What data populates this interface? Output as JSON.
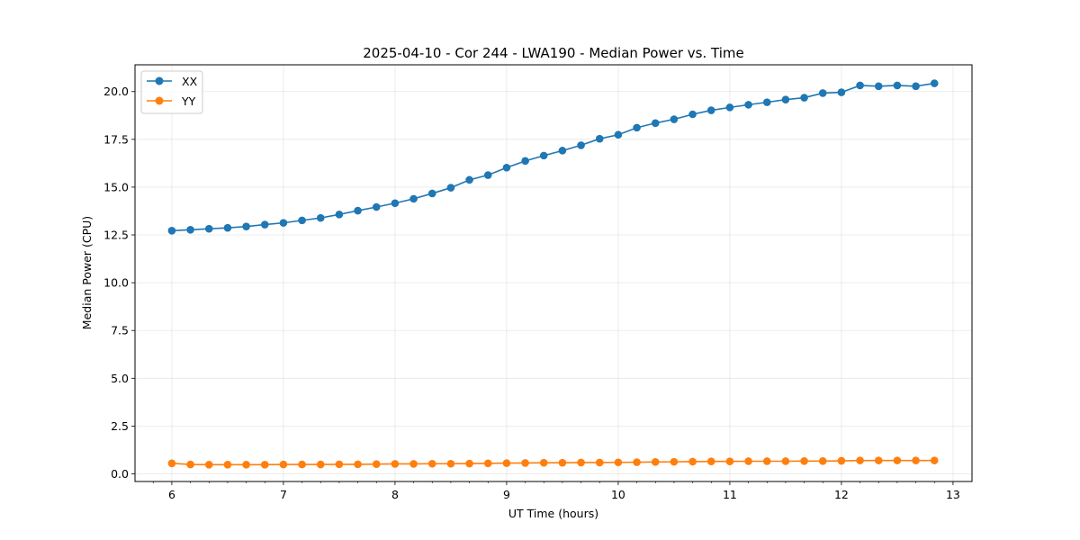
{
  "chart_data": {
    "type": "line",
    "title": "2025-04-10 - Cor 244 - LWA190 - Median Power vs. Time",
    "xlabel": "UT Time (hours)",
    "ylabel": "Median Power (CPU)",
    "xlim": [
      5.67,
      13.17
    ],
    "ylim": [
      -0.4,
      21.4
    ],
    "xticks": [
      6,
      7,
      8,
      9,
      10,
      11,
      12,
      13
    ],
    "xtick_labels": [
      "6",
      "7",
      "8",
      "9",
      "10",
      "11",
      "12",
      "13"
    ],
    "yticks": [
      0,
      2.5,
      5,
      7.5,
      10,
      12.5,
      15,
      17.5,
      20
    ],
    "ytick_labels": [
      "0.0",
      "2.5",
      "5.0",
      "7.5",
      "10.0",
      "12.5",
      "15.0",
      "17.5",
      "20.0"
    ],
    "grid": true,
    "legend_position": "top-left",
    "x": [
      6.0,
      6.1667,
      6.3333,
      6.5,
      6.6667,
      6.8333,
      7.0,
      7.1667,
      7.3333,
      7.5,
      7.6667,
      7.8333,
      8.0,
      8.1667,
      8.3333,
      8.5,
      8.6667,
      8.8333,
      9.0,
      9.1667,
      9.3333,
      9.5,
      9.6667,
      9.8333,
      10.0,
      10.1667,
      10.3333,
      10.5,
      10.6667,
      10.8333,
      11.0,
      11.1667,
      11.3333,
      11.5,
      11.6667,
      11.8333,
      12.0,
      12.1667,
      12.3333,
      12.5,
      12.6667,
      12.8333
    ],
    "series": [
      {
        "name": "XX",
        "color": "#1f77b4",
        "values": [
          12.72,
          12.77,
          12.82,
          12.87,
          12.94,
          13.04,
          13.13,
          13.26,
          13.39,
          13.57,
          13.77,
          13.96,
          14.16,
          14.39,
          14.67,
          14.97,
          15.38,
          15.63,
          16.02,
          16.37,
          16.65,
          16.91,
          17.19,
          17.53,
          17.74,
          18.11,
          18.35,
          18.55,
          18.81,
          19.02,
          19.17,
          19.31,
          19.44,
          19.58,
          19.68,
          19.92,
          19.96,
          20.32,
          20.28,
          20.32,
          20.28,
          20.43
        ]
      },
      {
        "name": "YY",
        "color": "#ff7f0e",
        "values": [
          0.55,
          0.49,
          0.48,
          0.48,
          0.48,
          0.48,
          0.49,
          0.49,
          0.49,
          0.5,
          0.5,
          0.51,
          0.52,
          0.52,
          0.53,
          0.53,
          0.54,
          0.55,
          0.56,
          0.57,
          0.58,
          0.58,
          0.59,
          0.59,
          0.6,
          0.61,
          0.62,
          0.63,
          0.64,
          0.65,
          0.65,
          0.66,
          0.66,
          0.66,
          0.67,
          0.67,
          0.68,
          0.7,
          0.7,
          0.7,
          0.7,
          0.7
        ]
      }
    ]
  }
}
